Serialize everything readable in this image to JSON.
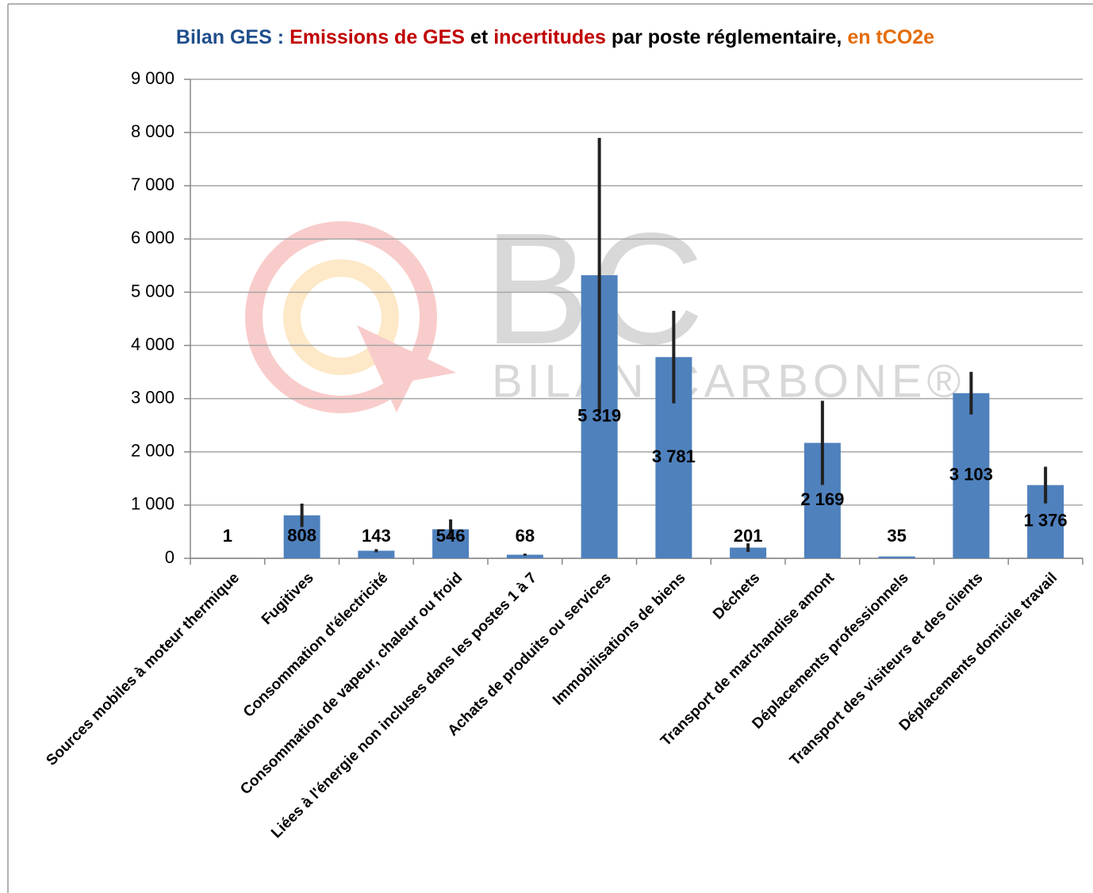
{
  "chart_data": {
    "type": "bar",
    "title": [
      {
        "text": "Bilan GES :",
        "color": "#1f4e8c"
      },
      {
        "text": "Emissions de GES",
        "color": "#c00000"
      },
      {
        "text": "et",
        "color": "#000000"
      },
      {
        "text": "incertitudes",
        "color": "#c00000"
      },
      {
        "text": "par poste réglementaire,",
        "color": "#000000"
      },
      {
        "text": "en tCO2e",
        "color": "#e46c0a"
      }
    ],
    "watermark": {
      "logo": "BC",
      "text": "BILAN CARBONE®"
    },
    "categories": [
      "Sources mobiles à moteur thermique",
      "Fugitives",
      "Consommation d'électricité",
      "Consommation de vapeur, chaleur ou froid",
      "Liées à l'énergie non incluses dans les postes 1 à 7",
      "Achats de produits ou services",
      "Immobilisations de biens",
      "Déchets",
      "Transport de marchandise amont",
      "Déplacements professionnels",
      "Transport des visiteurs et des clients",
      "Déplacements domicile travail"
    ],
    "values": [
      1,
      808,
      143,
      546,
      68,
      5319,
      3781,
      201,
      2169,
      35,
      3103,
      1376
    ],
    "value_labels": [
      "1",
      "808",
      "143",
      "546",
      "68",
      "5 319",
      "3 781",
      "201",
      "2 169",
      "35",
      "3 103",
      "1 376"
    ],
    "errors": [
      0,
      220,
      30,
      185,
      20,
      2580,
      870,
      80,
      790,
      0,
      400,
      345
    ],
    "color": "#4f81bd",
    "error_color": "#222222",
    "ylim": [
      0,
      9000
    ],
    "yticks": [
      {
        "value": 0,
        "label": "0"
      },
      {
        "value": 1000,
        "label": "1 000"
      },
      {
        "value": 2000,
        "label": "2 000"
      },
      {
        "value": 3000,
        "label": "3 000"
      },
      {
        "value": 4000,
        "label": "4 000"
      },
      {
        "value": 5000,
        "label": "5 000"
      },
      {
        "value": 6000,
        "label": "6 000"
      },
      {
        "value": 7000,
        "label": "7 000"
      },
      {
        "value": 8000,
        "label": "8 000"
      },
      {
        "value": 9000,
        "label": "9 000"
      }
    ],
    "grid": true
  }
}
